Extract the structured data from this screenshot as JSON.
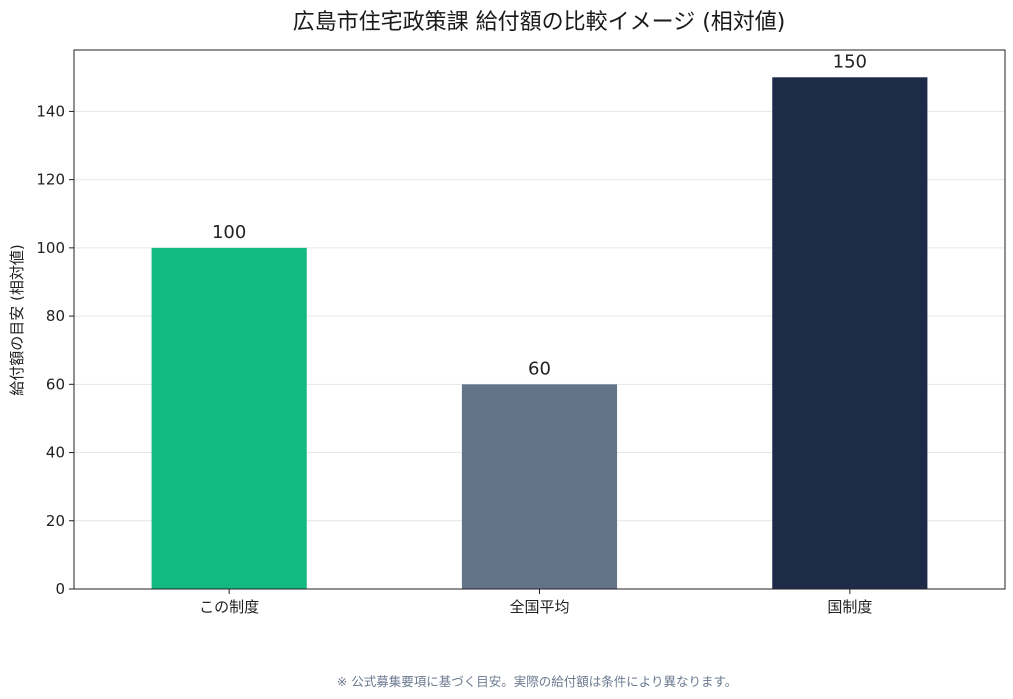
{
  "chart_data": {
    "type": "bar",
    "title": "広島市住宅政策課 給付額の比較イメージ (相対値)",
    "xlabel": "",
    "ylabel": "給付額の目安 (相対値)",
    "categories": [
      "この制度",
      "全国平均",
      "国制度"
    ],
    "values": [
      100,
      60,
      150
    ],
    "value_labels": [
      "100",
      "60",
      "150"
    ],
    "colors": [
      "#12b981",
      "#637388",
      "#1d2a48"
    ],
    "ylim": [
      0,
      158
    ],
    "yticks": [
      0,
      20,
      40,
      60,
      80,
      100,
      120,
      140
    ],
    "ytick_labels": [
      "0",
      "20",
      "40",
      "60",
      "80",
      "100",
      "120",
      "140"
    ],
    "grid": "horizontal",
    "legend": "none"
  },
  "footnote": "※ 公式募集要項に基づく目安。実際の給付額は条件により異なります。"
}
